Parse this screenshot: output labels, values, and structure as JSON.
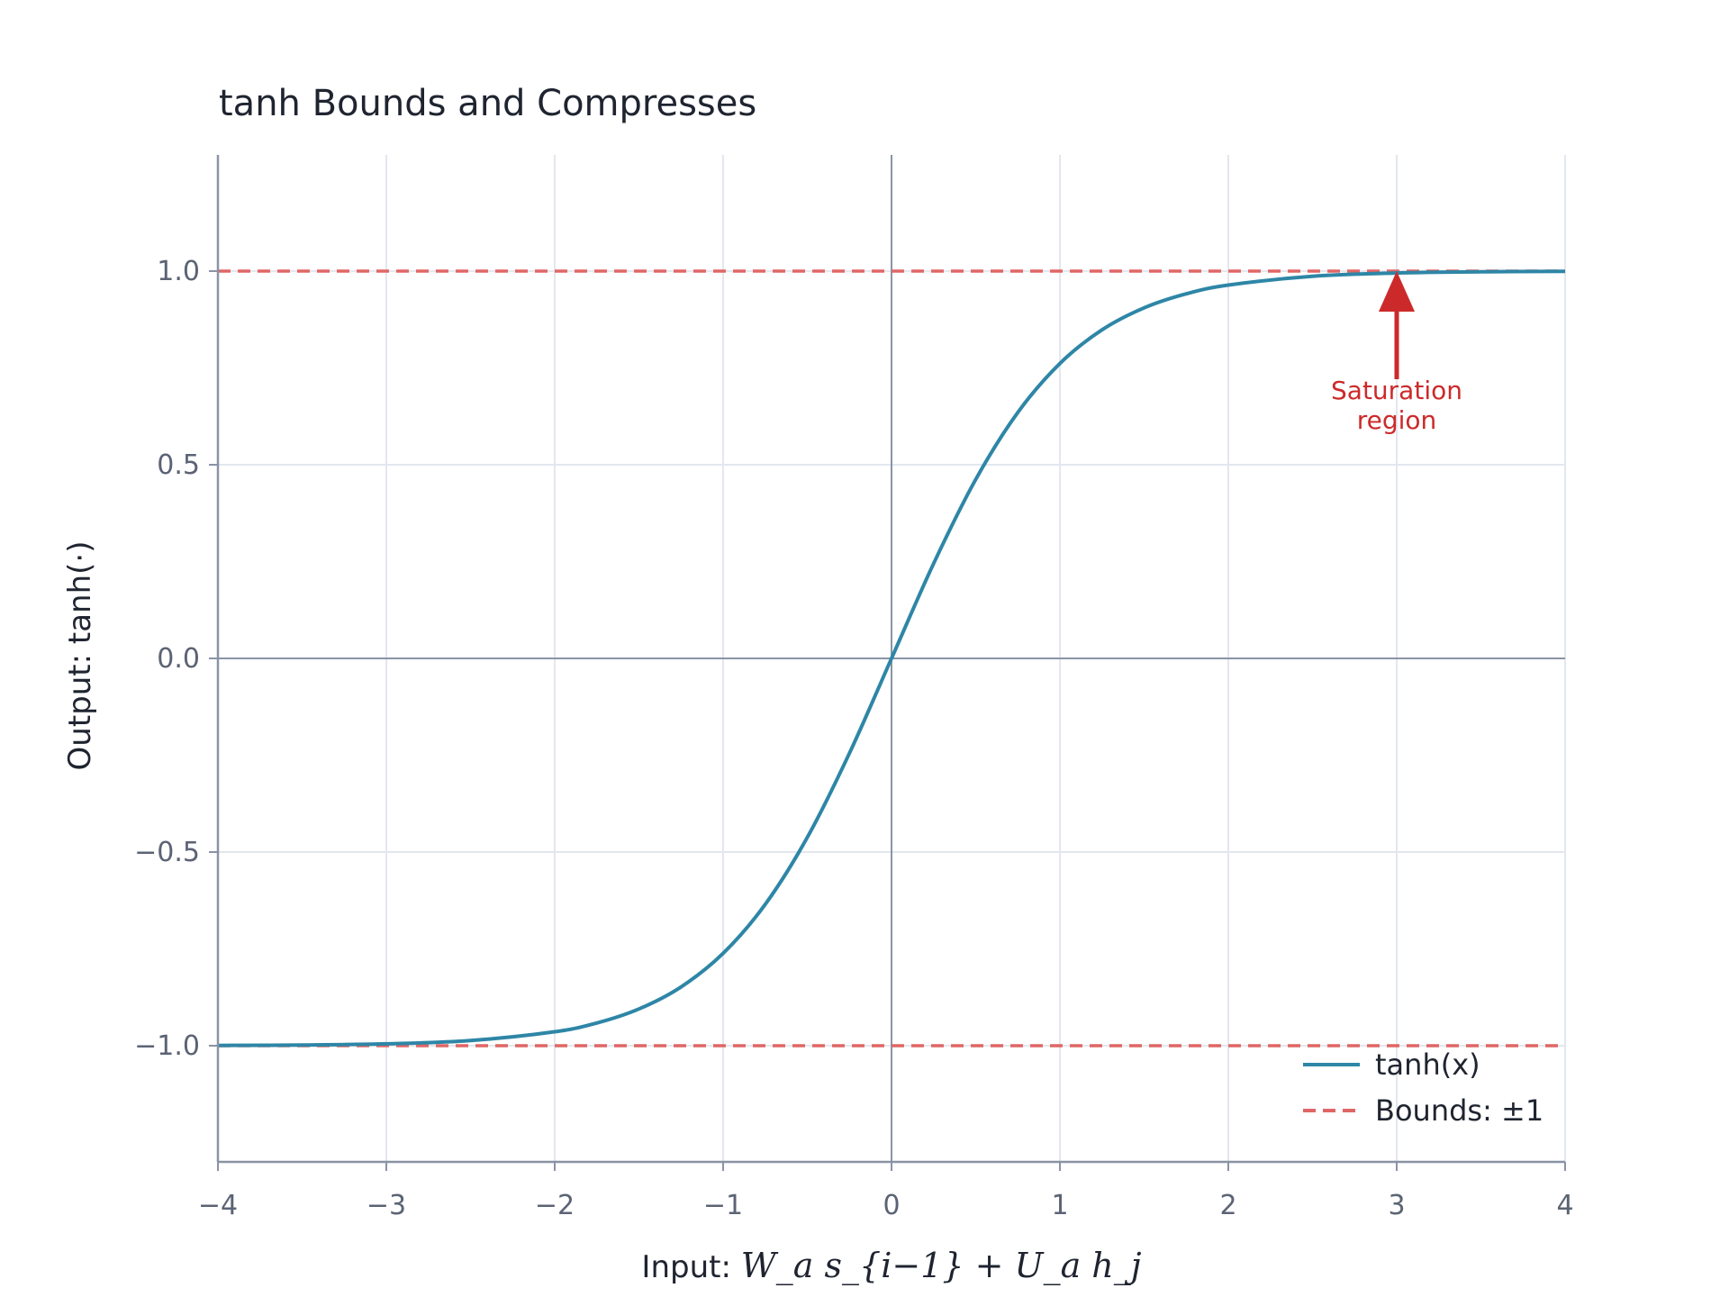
{
  "chart_data": {
    "type": "line",
    "title": "tanh Bounds and Compresses",
    "xlabel_prefix": "Input: ",
    "xlabel_math": "W_a s_{i−1} + U_a h_j",
    "ylabel": "Output: tanh(·)",
    "xlim": [
      -4,
      4
    ],
    "ylim": [
      -1.3,
      1.3
    ],
    "x_ticks": [
      -4,
      -3,
      -2,
      -1,
      0,
      1,
      2,
      3,
      4
    ],
    "x_tick_labels": [
      "−4",
      "−3",
      "−2",
      "−1",
      "0",
      "1",
      "2",
      "3",
      "4"
    ],
    "y_ticks": [
      -1.0,
      -0.5,
      0.0,
      0.5,
      1.0
    ],
    "y_tick_labels": [
      "−1.0",
      "−0.5",
      "0.0",
      "0.5",
      "1.0"
    ],
    "grid": true,
    "legend_position": "bottom-right",
    "series": [
      {
        "name": "tanh(x)",
        "style": "solid",
        "color": "#2e86a6",
        "x": [
          -4.0,
          -3.5,
          -3.0,
          -2.5,
          -2.0,
          -1.75,
          -1.5,
          -1.25,
          -1.0,
          -0.75,
          -0.5,
          -0.25,
          0.0,
          0.25,
          0.5,
          0.75,
          1.0,
          1.25,
          1.5,
          1.75,
          2.0,
          2.5,
          3.0,
          3.5,
          4.0
        ],
        "y": [
          -0.9993,
          -0.9982,
          -0.9951,
          -0.9866,
          -0.964,
          -0.9414,
          -0.9051,
          -0.8483,
          -0.7616,
          -0.6351,
          -0.4621,
          -0.2449,
          0.0,
          0.2449,
          0.4621,
          0.6351,
          0.7616,
          0.8483,
          0.9051,
          0.9414,
          0.964,
          0.9866,
          0.9951,
          0.9982,
          0.9993
        ]
      },
      {
        "name": "Bounds: ±1",
        "style": "dashed",
        "color": "#e06666",
        "lines_y": [
          1.0,
          -1.0
        ]
      }
    ],
    "annotations": [
      {
        "text_lines": [
          "Saturation",
          "region"
        ],
        "color": "#cc2a2a",
        "arrow_to": [
          3.0,
          1.0
        ],
        "text_at": [
          3.0,
          0.6
        ]
      }
    ]
  }
}
